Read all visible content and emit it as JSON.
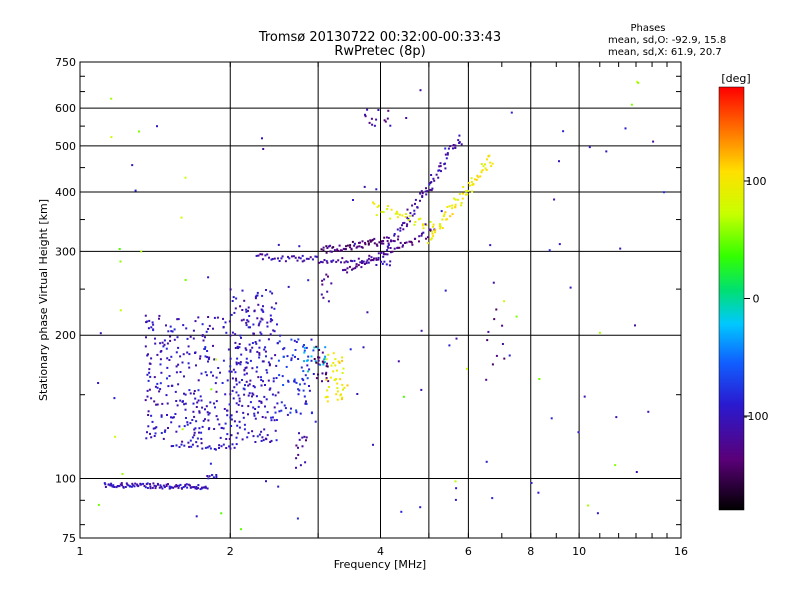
{
  "chart_data": {
    "type": "scatter",
    "title": "Tromsø 20130722 00:32:00-00:33:43",
    "subtitle": "RwPretec (8p)",
    "xlabel": "Frequency [MHz]",
    "ylabel": "Stationary phase Virtual Height [km]",
    "x_scale": "log",
    "y_scale": "log",
    "xlim": [
      1,
      16
    ],
    "ylim": [
      75,
      750
    ],
    "x_ticks": [
      1,
      2,
      4,
      6,
      8,
      10,
      16
    ],
    "x_tick_labels": [
      "1",
      "2",
      "4",
      "6",
      "8",
      "10",
      "16"
    ],
    "y_ticks": [
      75,
      100,
      200,
      300,
      400,
      500,
      600,
      750
    ],
    "y_tick_labels": [
      "75",
      "100",
      "200",
      "300",
      "400",
      "500",
      "600",
      "750"
    ],
    "grid": true,
    "stats": {
      "heading": "Phases",
      "o_line": "mean, sd,O: -92.9, 15.8",
      "x_line": "mean, sd,X:  61.9, 20.7"
    },
    "colorbar": {
      "label": "[deg]",
      "min": -180,
      "max": 180,
      "ticks": [
        100,
        0,
        -100
      ],
      "tick_labels": [
        "100",
        "0",
        "-100"
      ]
    },
    "series": [
      {
        "mode": "arc",
        "x": [
          1.12,
          1.8
        ],
        "y": [
          97,
          96
        ],
        "phase": -105,
        "count": 100,
        "jitter": 0.008
      },
      {
        "mode": "arc",
        "x": [
          1.8,
          1.88
        ],
        "y": [
          100,
          102
        ],
        "phase": -100,
        "count": 8,
        "jitter": 0.01
      },
      {
        "mode": "arc",
        "x": [
          1.53,
          2.05
        ],
        "y": [
          118,
          116
        ],
        "phase": -100,
        "count": 30,
        "jitter": 0.012
      },
      {
        "mode": "cloud",
        "x": [
          1.35,
          2.0
        ],
        "y": [
          120,
          220
        ],
        "phase": -100,
        "count": 260
      },
      {
        "mode": "cloud",
        "x": [
          2.0,
          2.5
        ],
        "y": [
          118,
          250
        ],
        "phase": -100,
        "count": 240
      },
      {
        "mode": "cloud",
        "x": [
          2.5,
          2.95
        ],
        "y": [
          135,
          200
        ],
        "phase": -80,
        "count": 70
      },
      {
        "mode": "cloud",
        "x": [
          2.8,
          3.1
        ],
        "y": [
          165,
          190
        ],
        "phase": -25,
        "count": 18
      },
      {
        "mode": "cloud",
        "x": [
          2.95,
          3.15
        ],
        "y": [
          160,
          195
        ],
        "phase": -140,
        "count": 22
      },
      {
        "mode": "cloud",
        "x": [
          3.1,
          3.45
        ],
        "y": [
          145,
          185
        ],
        "phase": 100,
        "count": 40
      },
      {
        "mode": "arc",
        "x": [
          2.25,
          4.2
        ],
        "y": [
          292,
          284
        ],
        "phase": -110,
        "count": 70,
        "jitter": 0.01
      },
      {
        "mode": "arc",
        "x": [
          3.05,
          4.15
        ],
        "y": [
          302,
          316
        ],
        "phase": -135,
        "count": 60,
        "jitter": 0.012
      },
      {
        "mode": "arc",
        "x": [
          3.35,
          5.1
        ],
        "y": [
          272,
          330
        ],
        "phase": -125,
        "count": 60,
        "jitter": 0.012
      },
      {
        "mode": "arc",
        "x": [
          4.1,
          5.8
        ],
        "y": [
          300,
          520
        ],
        "phase": -115,
        "count": 80,
        "jitter": 0.02
      },
      {
        "mode": "arc",
        "x": [
          3.85,
          5.0
        ],
        "y": [
          370,
          340
        ],
        "phase": 90,
        "count": 30,
        "jitter": 0.02
      },
      {
        "mode": "arc",
        "x": [
          5.0,
          6.7
        ],
        "y": [
          320,
          470
        ],
        "phase": 100,
        "count": 70,
        "jitter": 0.02
      },
      {
        "mode": "cloud",
        "x": [
          3.0,
          3.2
        ],
        "y": [
          235,
          270
        ],
        "phase": -120,
        "count": 10
      },
      {
        "mode": "cloud",
        "x": [
          3.6,
          4.2
        ],
        "y": [
          550,
          600
        ],
        "phase": -120,
        "count": 14
      },
      {
        "mode": "cloud",
        "x": [
          2.7,
          2.85
        ],
        "y": [
          105,
          125
        ],
        "phase": -120,
        "count": 14
      },
      {
        "mode": "cloud",
        "x": [
          6.5,
          7.1
        ],
        "y": [
          160,
          230
        ],
        "phase": -140,
        "count": 10
      },
      {
        "mode": "cloud",
        "x": [
          1.05,
          14.8
        ],
        "y": [
          78,
          700
        ],
        "phase": -100,
        "count": 80
      },
      {
        "mode": "cloud",
        "x": [
          1.05,
          14.8
        ],
        "y": [
          78,
          700
        ],
        "phase": 60,
        "count": 30
      }
    ]
  }
}
